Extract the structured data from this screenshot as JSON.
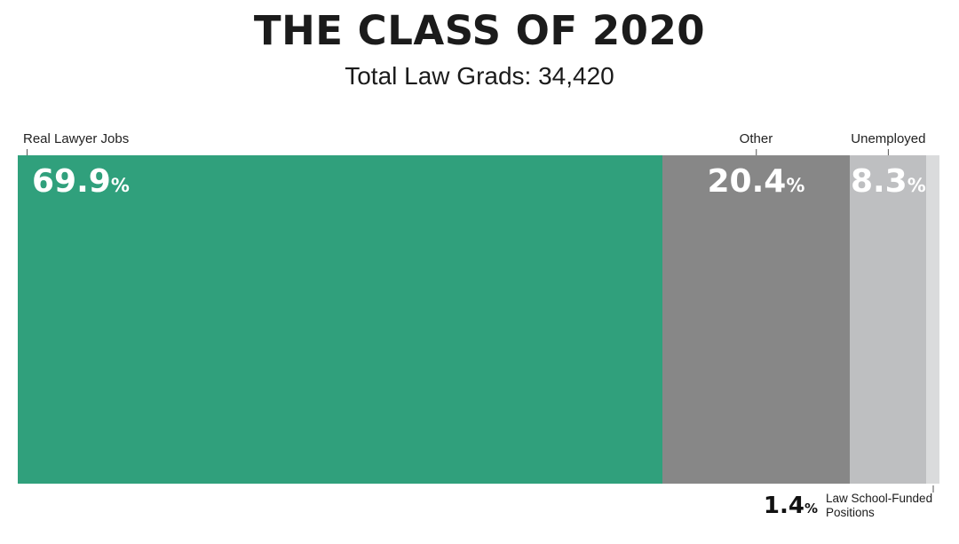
{
  "header": {
    "title": "THE CLASS OF 2020",
    "subtitle": "Total Law Grads: 34,420"
  },
  "chart_data": {
    "type": "bar",
    "variant": "horizontal-stacked-100-percent",
    "title": "THE CLASS OF 2020",
    "subtitle": "Total Law Grads: 34,420",
    "total_law_grads": 34420,
    "unit": "%",
    "xlim": [
      0,
      100
    ],
    "grid": false,
    "legend": "labels-with-tick-callouts",
    "background_color": "#ffffff",
    "text_color": "#1b1b1b",
    "segments": [
      {
        "label": "Real Lawyer Jobs",
        "value": 69.9,
        "value_label": "69.9",
        "color": "#30a07c",
        "value_text_color": "#ffffff",
        "label_position": "top-left"
      },
      {
        "label": "Other",
        "value": 20.4,
        "value_label": "20.4",
        "color": "#878787",
        "value_text_color": "#ffffff",
        "label_position": "top-center"
      },
      {
        "label": "Unemployed",
        "value": 8.3,
        "value_label": "8.3",
        "color": "#bebfc1",
        "value_text_color": "#ffffff",
        "label_position": "top-center"
      },
      {
        "label": "Law School-Funded Positions",
        "value": 1.4,
        "value_label": "1.4",
        "color": "#dadbdc",
        "value_text_color": "#111111",
        "label_position": "bottom-right"
      }
    ]
  }
}
